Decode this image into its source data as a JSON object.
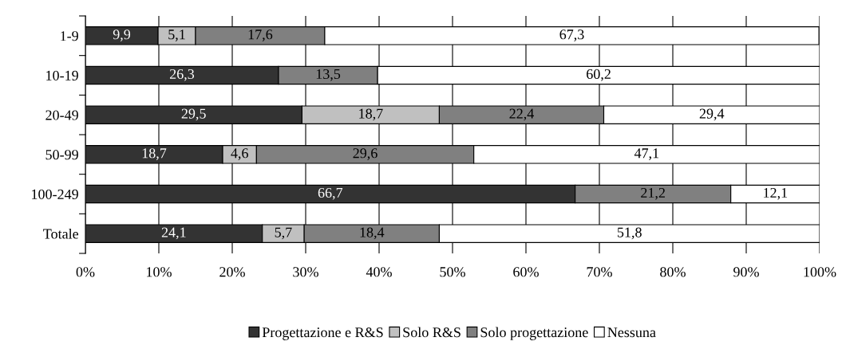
{
  "chart_data": {
    "type": "bar",
    "orientation": "horizontal",
    "stacked": true,
    "categories": [
      "1-9",
      "10-19",
      "20-49",
      "50-99",
      "100-249",
      "Totale"
    ],
    "series": [
      {
        "name": "Progettazione e R&S",
        "color": "#333333",
        "values": [
          9.9,
          26.3,
          29.5,
          18.7,
          66.7,
          24.1
        ],
        "value_labels": [
          "9,9",
          "26,3",
          "29,5",
          "18,7",
          "66,7",
          "24,1"
        ]
      },
      {
        "name": "Solo R&S",
        "color": "#c0c0c0",
        "values": [
          5.1,
          null,
          18.7,
          4.6,
          null,
          5.7
        ],
        "value_labels": [
          "5,1",
          null,
          "18,7",
          "4,6",
          null,
          "5,7"
        ]
      },
      {
        "name": "Solo progettazione",
        "color": "#808080",
        "values": [
          17.6,
          13.5,
          22.4,
          29.6,
          21.2,
          18.4
        ],
        "value_labels": [
          "17,6",
          "13,5",
          "22,4",
          "29,6",
          "21,2",
          "18,4"
        ]
      },
      {
        "name": "Nessuna",
        "color": "#ffffff",
        "values": [
          67.3,
          60.2,
          29.4,
          47.1,
          12.1,
          51.8
        ],
        "value_labels": [
          "67,3",
          "60,2",
          "29,4",
          "47,1",
          "12,1",
          "51,8"
        ]
      }
    ],
    "xlim": [
      0,
      100
    ],
    "xticks": [
      {
        "value": 0,
        "label": "0%"
      },
      {
        "value": 10,
        "label": "10%"
      },
      {
        "value": 20,
        "label": "20%"
      },
      {
        "value": 30,
        "label": "30%"
      },
      {
        "value": 40,
        "label": "40%"
      },
      {
        "value": 50,
        "label": "50%"
      },
      {
        "value": 60,
        "label": "60%"
      },
      {
        "value": 70,
        "label": "70%"
      },
      {
        "value": 80,
        "label": "80%"
      },
      {
        "value": 90,
        "label": "90%"
      },
      {
        "value": 100,
        "label": "100%"
      }
    ],
    "grid": "x",
    "legend": "bottom"
  }
}
